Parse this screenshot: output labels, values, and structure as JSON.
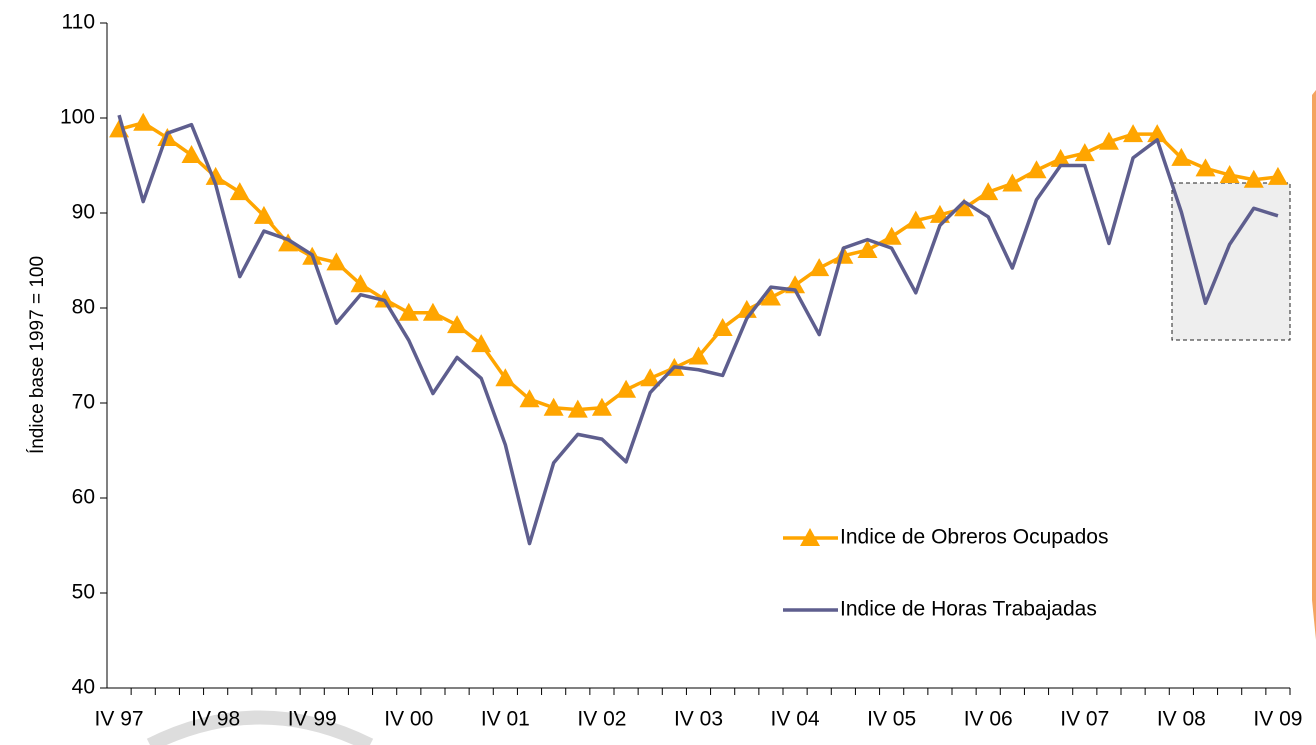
{
  "chart_data": {
    "type": "line",
    "y_label": "Índice base 1997 = 100",
    "categories": [
      "IV 97",
      null,
      null,
      null,
      "IV 98",
      null,
      null,
      null,
      "IV 99",
      null,
      null,
      null,
      "IV 00",
      null,
      null,
      null,
      "IV 01",
      null,
      null,
      null,
      "IV 02",
      null,
      null,
      null,
      "IV 03",
      null,
      null,
      null,
      "IV 04",
      null,
      null,
      null,
      "IV 05",
      null,
      null,
      null,
      "IV 06",
      null,
      null,
      null,
      "IV 07",
      null,
      null,
      null,
      "IV 08",
      null,
      null,
      null,
      "IV 09"
    ],
    "series": [
      {
        "name": "Indice de Obreros Ocupados",
        "color": "#ffa500",
        "marker": "triangle",
        "values": [
          98.8,
          99.5,
          97.9,
          96.1,
          93.8,
          92.2,
          89.7,
          86.8,
          85.4,
          84.8,
          82.5,
          80.9,
          79.5,
          79.5,
          78.2,
          76.2,
          72.6,
          70.4,
          69.5,
          69.3,
          69.5,
          71.4,
          72.6,
          73.7,
          74.9,
          77.9,
          79.8,
          81.1,
          82.4,
          84.2,
          85.5,
          86.1,
          87.5,
          89.2,
          89.8,
          90.5,
          92.2,
          93.1,
          94.5,
          95.7,
          96.3,
          97.5,
          98.3,
          98.3,
          95.8,
          94.7,
          94.0,
          93.5,
          93.8
        ]
      },
      {
        "name": "Indice de Horas Trabajadas",
        "color": "#5e5e8e",
        "values": [
          100.3,
          91.2,
          98.4,
          99.3,
          93.0,
          83.3,
          88.1,
          87.2,
          85.6,
          78.4,
          81.4,
          80.8,
          76.6,
          71.0,
          74.8,
          72.6,
          65.6,
          55.2,
          63.7,
          66.7,
          66.2,
          63.8,
          71.1,
          73.8,
          73.5,
          72.9,
          78.9,
          82.2,
          81.9,
          77.2,
          86.3,
          87.2,
          86.3,
          81.6,
          88.7,
          91.2,
          89.6,
          84.2,
          91.4,
          95.0,
          95.0,
          86.8,
          95.8,
          97.7,
          90.1,
          80.5,
          86.7,
          90.5,
          89.7
        ]
      }
    ],
    "ylim": [
      40,
      110
    ],
    "yticks": [
      40,
      50,
      60,
      70,
      80,
      90,
      100,
      110
    ],
    "grid": false
  }
}
